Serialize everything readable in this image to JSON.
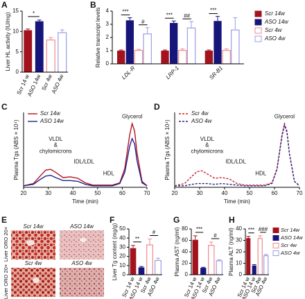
{
  "chart_data": [
    {
      "panel": "A",
      "type": "bar",
      "ylabel": "Liver HL activity (IU/mg)",
      "categories": [
        "Scr 14 w",
        "ASO 14w",
        "Scr 4w",
        "ASO 4w"
      ],
      "values": [
        10.3,
        12.5,
        8,
        9.8
      ],
      "errors": [
        0.3,
        0.3,
        0.5,
        0.6
      ],
      "colors": [
        "#a3131d",
        "#16157a",
        "#f08a8a",
        "#9c9ce6"
      ],
      "filled": [
        true,
        true,
        false,
        false
      ],
      "ylim": [
        0,
        15
      ],
      "yticks": [
        0,
        5,
        10,
        15
      ],
      "annotations": [
        {
          "text": "*",
          "between": [
            0,
            1
          ]
        }
      ]
    },
    {
      "panel": "B",
      "type": "groupedbar",
      "ylabel": "Relative transcript levels",
      "categories": [
        "LDL-R",
        "LRP-1",
        "SR-B1"
      ],
      "series": [
        {
          "name": "Scr 14w",
          "color": "#a3131d",
          "filled": true,
          "values": [
            1,
            1,
            1
          ],
          "errors": [
            0.05,
            0.05,
            0.05
          ]
        },
        {
          "name": "ASO 14w",
          "color": "#16157a",
          "filled": true,
          "values": [
            3.3,
            3.1,
            3.25
          ],
          "errors": [
            0.2,
            0.15,
            0.35
          ]
        },
        {
          "name": "Scr 4w",
          "color": "#f08a8a",
          "filled": false,
          "values": [
            1.05,
            1.05,
            1.05
          ],
          "errors": [
            0.05,
            0.08,
            0.08
          ]
        },
        {
          "name": "ASO 4w",
          "color": "#9c9ce6",
          "filled": false,
          "values": [
            2.3,
            2.75,
            2.6
          ],
          "errors": [
            0.45,
            0.45,
            0.9
          ]
        }
      ],
      "ylim": [
        0,
        4
      ],
      "yticks": [
        0,
        1,
        2,
        3,
        4
      ],
      "annotations": [
        {
          "text": "***",
          "category": 0,
          "between": [
            0,
            1
          ]
        },
        {
          "text": "#",
          "category": 0,
          "between": [
            2,
            3
          ]
        },
        {
          "text": "***",
          "category": 1,
          "between": [
            0,
            1
          ]
        },
        {
          "text": "##",
          "category": 1,
          "between": [
            2,
            3
          ]
        },
        {
          "text": "***",
          "category": 2,
          "between": [
            0,
            1
          ]
        }
      ]
    },
    {
      "panel": "C",
      "type": "line",
      "ylabel": "Plasma Tgs (ABS × 10⁴)",
      "xlabel": "Time (min)",
      "x": [
        20,
        24,
        27,
        29,
        31,
        33,
        36,
        39,
        42,
        45,
        48,
        52,
        56,
        59,
        61,
        63,
        64,
        65,
        66,
        68,
        70
      ],
      "series": [
        {
          "name": "Scr 14w",
          "color": "#b3121c",
          "dashed": false,
          "values": [
            0.02,
            0.05,
            0.16,
            0.23,
            0.24,
            0.2,
            0.13,
            0.14,
            0.12,
            0.06,
            0.03,
            0.03,
            0.03,
            0.06,
            0.25,
            0.7,
            0.85,
            0.75,
            0.45,
            0.08,
            0.02
          ]
        },
        {
          "name": "ASO 14w",
          "color": "#22228c",
          "dashed": false,
          "values": [
            0.02,
            0.04,
            0.11,
            0.15,
            0.16,
            0.13,
            0.09,
            0.09,
            0.08,
            0.04,
            0.02,
            0.02,
            0.02,
            0.05,
            0.2,
            0.55,
            0.65,
            0.58,
            0.35,
            0.06,
            0.02
          ]
        }
      ],
      "xlim": [
        20,
        70
      ],
      "xticks": [
        20,
        30,
        40,
        50,
        60,
        70
      ],
      "ylim": [
        0,
        1
      ],
      "annotations": [
        "VLDL",
        "&",
        "chylomicrons",
        "IDL/LDL",
        "HDL",
        "Glycerol"
      ]
    },
    {
      "panel": "D",
      "type": "line",
      "ylabel": "Plasma Tgs (ABS × 10⁴)",
      "xlabel": "Time (min)",
      "x": [
        20,
        24,
        27,
        29,
        31,
        33,
        36,
        39,
        42,
        45,
        48,
        52,
        56,
        59,
        61,
        63,
        64,
        65,
        66,
        68,
        70
      ],
      "series": [
        {
          "name": "Scr 4w",
          "color": "#c8202a",
          "dashed": true,
          "values": [
            0.02,
            0.05,
            0.15,
            0.21,
            0.22,
            0.18,
            0.12,
            0.13,
            0.11,
            0.05,
            0.03,
            0.03,
            0.03,
            0.06,
            0.25,
            0.7,
            0.85,
            0.75,
            0.45,
            0.08,
            0.02
          ]
        },
        {
          "name": "ASO 4w",
          "color": "#22228c",
          "dashed": true,
          "values": [
            0.02,
            0.02,
            0.04,
            0.05,
            0.05,
            0.05,
            0.04,
            0.05,
            0.04,
            0.03,
            0.02,
            0.02,
            0.02,
            0.05,
            0.24,
            0.68,
            0.83,
            0.73,
            0.44,
            0.08,
            0.02
          ]
        }
      ],
      "xlim": [
        20,
        70
      ],
      "xticks": [
        20,
        30,
        40,
        50,
        60,
        70
      ],
      "ylim": [
        0,
        1
      ],
      "annotations": [
        "VLDL",
        "&",
        "chylomicrons",
        "IDL/LDL",
        "HDL",
        "Glycerol"
      ]
    },
    {
      "panel": "F",
      "type": "bar",
      "ylabel": "Liver Tg content (mg/g)",
      "categories": [
        "Scr 14 w",
        "ASO 14 w",
        "Scr 4w",
        "ASO 4w"
      ],
      "values": [
        29,
        8,
        33,
        16
      ],
      "errors": [
        3,
        1,
        6,
        2
      ],
      "colors": [
        "#a3131d",
        "#16157a",
        "#f08a8a",
        "#9c9ce6"
      ],
      "filled": [
        true,
        true,
        false,
        false
      ],
      "ylim": [
        0,
        50
      ],
      "yticks": [
        0,
        10,
        20,
        30,
        40,
        50
      ],
      "annotations": [
        {
          "text": "**",
          "between": [
            0,
            1
          ]
        },
        {
          "text": "#",
          "between": [
            2,
            3
          ]
        }
      ]
    },
    {
      "panel": "G",
      "type": "bar",
      "ylabel": "Plasma AST (ng/ml)",
      "categories": [
        "Scr 14 w",
        "ASO 14 w",
        "Scr 4w",
        "ASO 4w"
      ],
      "values": [
        61,
        12,
        52,
        25
      ],
      "errors": [
        7,
        1,
        5,
        1
      ],
      "colors": [
        "#a3131d",
        "#16157a",
        "#f08a8a",
        "#9c9ce6"
      ],
      "filled": [
        true,
        true,
        false,
        false
      ],
      "ylim": [
        0,
        80
      ],
      "yticks": [
        0,
        20,
        40,
        60,
        80
      ],
      "annotations": [
        {
          "text": "***",
          "between": [
            0,
            1
          ]
        },
        {
          "text": "#",
          "between": [
            2,
            3
          ]
        }
      ]
    },
    {
      "panel": "H",
      "type": "bar",
      "ylabel": "Plasma ALT (ng/ml)",
      "categories": [
        "Scr 14 w",
        "ASO 14 w",
        "Scr 4w",
        "ASO 4w"
      ],
      "values": [
        32,
        8,
        32,
        17
      ],
      "errors": [
        1.5,
        0.8,
        2,
        0.7
      ],
      "colors": [
        "#a3131d",
        "#16157a",
        "#f08a8a",
        "#9c9ce6"
      ],
      "filled": [
        true,
        true,
        false,
        false
      ],
      "ylim": [
        0,
        40
      ],
      "yticks": [
        0,
        10,
        20,
        30,
        40
      ],
      "annotations": [
        {
          "text": "***",
          "between": [
            0,
            1
          ]
        },
        {
          "text": "###",
          "between": [
            2,
            3
          ]
        }
      ],
      "legend": [
        "Scr 14w",
        "ASO 14w",
        "Scr 4w",
        "ASO 4w"
      ]
    }
  ],
  "panel_e": {
    "panel": "E",
    "row_labels": [
      "Liver ORO 20×",
      "Liver ORO 20×"
    ],
    "image_labels": [
      "Scr 14w",
      "ASO 14w",
      "Scr 4w",
      "ASO 4w"
    ]
  }
}
